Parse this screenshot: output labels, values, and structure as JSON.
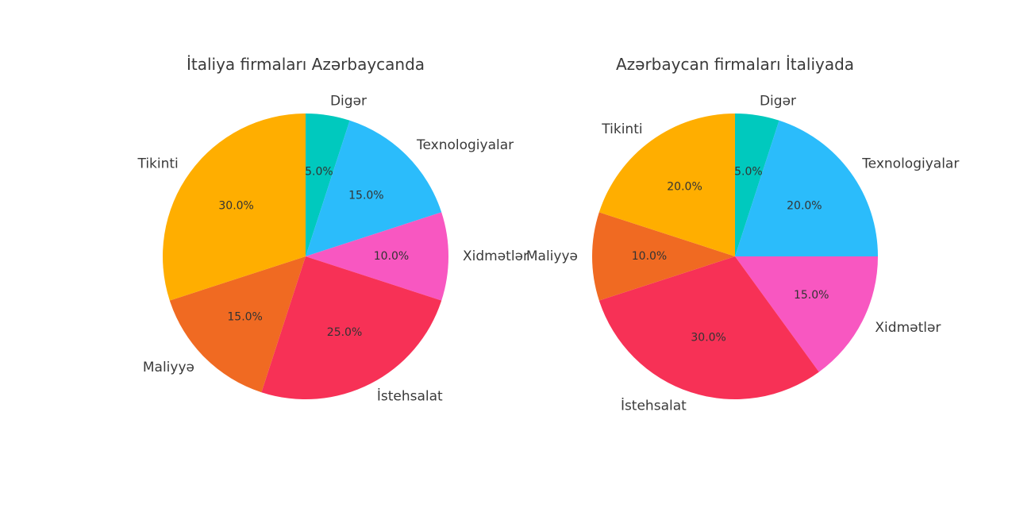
{
  "chart_data": [
    {
      "type": "pie",
      "title": "İtaliya firmaları Azərbaycanda",
      "labels": [
        "Digər",
        "Texnologiyalar",
        "Xidmətlər",
        "İstehsalat",
        "Maliyyə",
        "Tikinti"
      ],
      "values": [
        5,
        15,
        10,
        25,
        15,
        30
      ],
      "percent_labels": [
        "5.0%",
        "15.0%",
        "10.0%",
        "25.0%",
        "15.0%",
        "30.0%"
      ],
      "colors": [
        "#00C9BE",
        "#2BBCFB",
        "#F857C1",
        "#F73156",
        "#F06A22",
        "#FFAE00"
      ],
      "start": "top",
      "direction": "clockwise"
    },
    {
      "type": "pie",
      "title": "Azərbaycan firmaları İtaliyada",
      "labels": [
        "Digər",
        "Texnologiyalar",
        "Xidmətlər",
        "İstehsalat",
        "Maliyyə",
        "Tikinti"
      ],
      "values": [
        5,
        20,
        15,
        30,
        10,
        20
      ],
      "percent_labels": [
        "5.0%",
        "20.0%",
        "15.0%",
        "30.0%",
        "10.0%",
        "20.0%"
      ],
      "colors": [
        "#00C9BE",
        "#2BBCFB",
        "#F857C1",
        "#F73156",
        "#F06A22",
        "#FFAE00"
      ],
      "start": "top",
      "direction": "clockwise"
    }
  ]
}
